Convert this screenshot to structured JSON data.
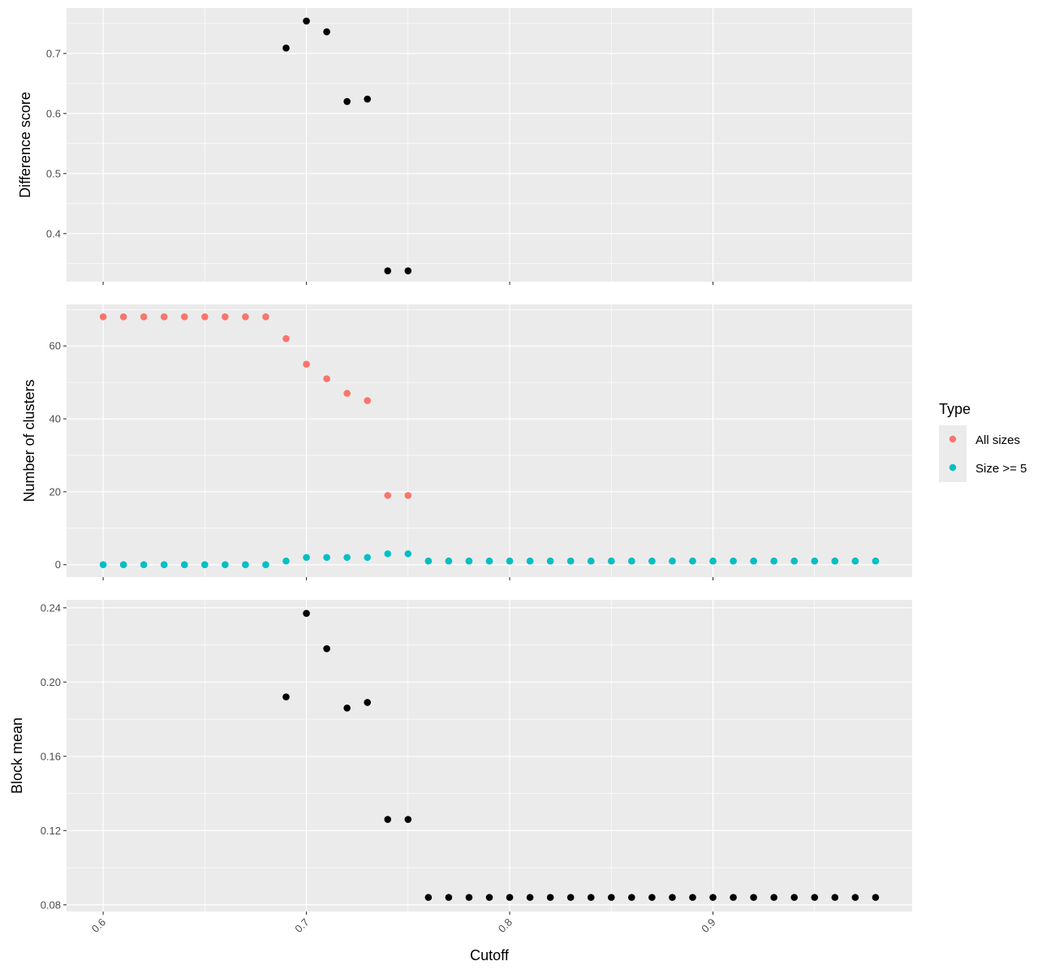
{
  "chart_data": [
    {
      "type": "scatter",
      "ylabel": "Difference score",
      "xlim": [
        0.582,
        0.998
      ],
      "ylim": [
        0.32,
        0.7755
      ],
      "yticks": [
        0.4,
        0.5,
        0.6,
        0.7
      ],
      "ytick_labels": [
        "0.4",
        "0.5",
        "0.6",
        "0.7"
      ],
      "series": [
        {
          "color": "#000000",
          "points": [
            [
              0.69,
              0.709
            ],
            [
              0.7,
              0.754
            ],
            [
              0.71,
              0.736
            ],
            [
              0.72,
              0.62
            ],
            [
              0.73,
              0.624
            ],
            [
              0.74,
              0.338
            ],
            [
              0.75,
              0.338
            ]
          ]
        }
      ]
    },
    {
      "type": "scatter",
      "ylabel": "Number of clusters",
      "xlim": [
        0.582,
        0.998
      ],
      "ylim": [
        -3.4,
        71.4
      ],
      "yticks": [
        0,
        20,
        40,
        60
      ],
      "ytick_labels": [
        "0",
        "20",
        "40",
        "60"
      ],
      "series": [
        {
          "name": "All sizes",
          "color": "#F8766D",
          "points": [
            [
              0.6,
              68
            ],
            [
              0.61,
              68
            ],
            [
              0.62,
              68
            ],
            [
              0.63,
              68
            ],
            [
              0.64,
              68
            ],
            [
              0.65,
              68
            ],
            [
              0.66,
              68
            ],
            [
              0.67,
              68
            ],
            [
              0.68,
              68
            ],
            [
              0.69,
              62
            ],
            [
              0.7,
              55
            ],
            [
              0.71,
              51
            ],
            [
              0.72,
              47
            ],
            [
              0.73,
              45
            ],
            [
              0.74,
              19
            ],
            [
              0.75,
              19
            ],
            [
              0.76,
              1
            ],
            [
              0.77,
              1
            ],
            [
              0.78,
              1
            ],
            [
              0.79,
              1
            ],
            [
              0.8,
              1
            ],
            [
              0.81,
              1
            ],
            [
              0.82,
              1
            ],
            [
              0.83,
              1
            ],
            [
              0.84,
              1
            ],
            [
              0.85,
              1
            ],
            [
              0.86,
              1
            ],
            [
              0.87,
              1
            ],
            [
              0.88,
              1
            ],
            [
              0.89,
              1
            ],
            [
              0.9,
              1
            ],
            [
              0.91,
              1
            ],
            [
              0.92,
              1
            ],
            [
              0.93,
              1
            ],
            [
              0.94,
              1
            ],
            [
              0.95,
              1
            ],
            [
              0.96,
              1
            ],
            [
              0.97,
              1
            ],
            [
              0.98,
              1
            ]
          ]
        },
        {
          "name": "Size >= 5",
          "color": "#00BFC4",
          "points": [
            [
              0.6,
              0
            ],
            [
              0.61,
              0
            ],
            [
              0.62,
              0
            ],
            [
              0.63,
              0
            ],
            [
              0.64,
              0
            ],
            [
              0.65,
              0
            ],
            [
              0.66,
              0
            ],
            [
              0.67,
              0
            ],
            [
              0.68,
              0
            ],
            [
              0.69,
              1
            ],
            [
              0.7,
              2
            ],
            [
              0.71,
              2
            ],
            [
              0.72,
              2
            ],
            [
              0.73,
              2
            ],
            [
              0.74,
              3
            ],
            [
              0.75,
              3
            ],
            [
              0.76,
              1
            ],
            [
              0.77,
              1
            ],
            [
              0.78,
              1
            ],
            [
              0.79,
              1
            ],
            [
              0.8,
              1
            ],
            [
              0.81,
              1
            ],
            [
              0.82,
              1
            ],
            [
              0.83,
              1
            ],
            [
              0.84,
              1
            ],
            [
              0.85,
              1
            ],
            [
              0.86,
              1
            ],
            [
              0.87,
              1
            ],
            [
              0.88,
              1
            ],
            [
              0.89,
              1
            ],
            [
              0.9,
              1
            ],
            [
              0.91,
              1
            ],
            [
              0.92,
              1
            ],
            [
              0.93,
              1
            ],
            [
              0.94,
              1
            ],
            [
              0.95,
              1
            ],
            [
              0.96,
              1
            ],
            [
              0.97,
              1
            ],
            [
              0.98,
              1
            ]
          ]
        }
      ]
    },
    {
      "type": "scatter",
      "ylabel": "Block mean",
      "xlabel": "Cutoff",
      "xlim": [
        0.582,
        0.998
      ],
      "ylim": [
        0.0764,
        0.2443
      ],
      "yticks": [
        0.08,
        0.12,
        0.16,
        0.2,
        0.24
      ],
      "ytick_labels": [
        "0.08",
        "0.12",
        "0.16",
        "0.20",
        "0.24"
      ],
      "series": [
        {
          "color": "#000000",
          "points": [
            [
              0.69,
              0.192
            ],
            [
              0.7,
              0.237
            ],
            [
              0.71,
              0.218
            ],
            [
              0.72,
              0.186
            ],
            [
              0.73,
              0.189
            ],
            [
              0.74,
              0.126
            ],
            [
              0.75,
              0.126
            ],
            [
              0.76,
              0.084
            ],
            [
              0.77,
              0.084
            ],
            [
              0.78,
              0.084
            ],
            [
              0.79,
              0.084
            ],
            [
              0.8,
              0.084
            ],
            [
              0.81,
              0.084
            ],
            [
              0.82,
              0.084
            ],
            [
              0.83,
              0.084
            ],
            [
              0.84,
              0.084
            ],
            [
              0.85,
              0.084
            ],
            [
              0.86,
              0.084
            ],
            [
              0.87,
              0.084
            ],
            [
              0.88,
              0.084
            ],
            [
              0.89,
              0.084
            ],
            [
              0.9,
              0.084
            ],
            [
              0.91,
              0.084
            ],
            [
              0.92,
              0.084
            ],
            [
              0.93,
              0.084
            ],
            [
              0.94,
              0.084
            ],
            [
              0.95,
              0.084
            ],
            [
              0.96,
              0.084
            ],
            [
              0.97,
              0.084
            ],
            [
              0.98,
              0.084
            ]
          ]
        }
      ]
    }
  ],
  "shared_x": {
    "ticks": [
      0.6,
      0.7,
      0.8,
      0.9
    ],
    "tick_labels": [
      "0.6",
      "0.7",
      "0.8",
      "0.9"
    ],
    "label": "Cutoff"
  },
  "legend": {
    "title": "Type",
    "items": [
      {
        "label": "All sizes",
        "color": "#F8766D"
      },
      {
        "label": "Size >= 5",
        "color": "#00BFC4"
      }
    ]
  }
}
